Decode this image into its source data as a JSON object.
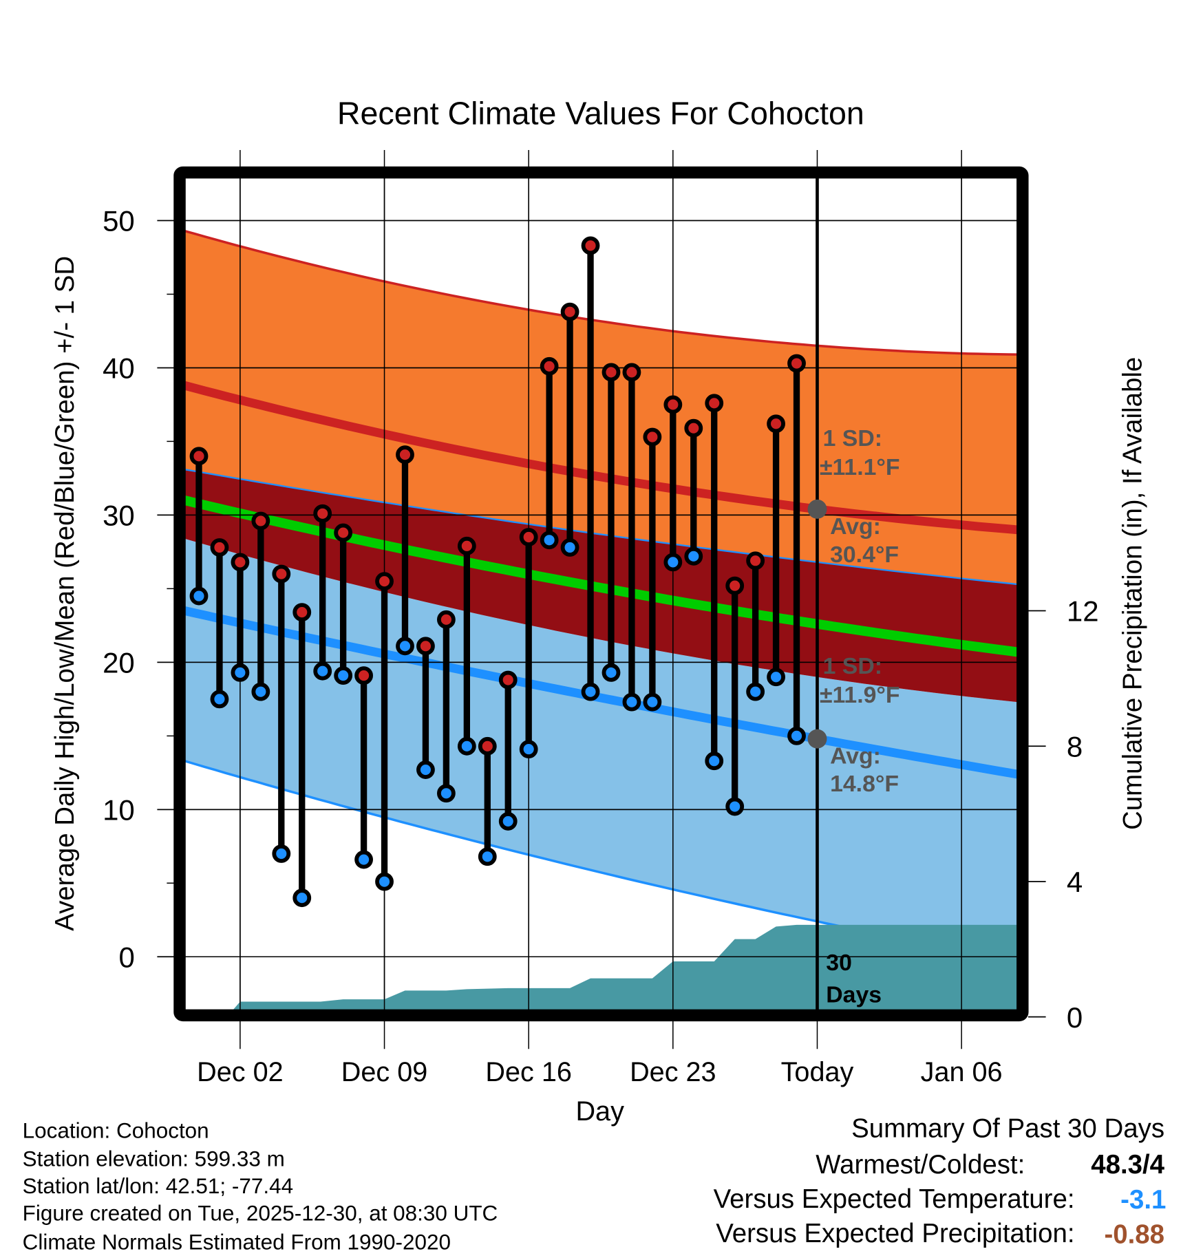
{
  "chart_data": {
    "type": "line",
    "title": "Recent Climate Values For Cohocton",
    "xlabel": "Day",
    "ylabel": "Average Daily High/Low/Mean (Red/Blue/Green) +/- 1 SD",
    "y2label": "Cumulative Precipitation (in), If Available",
    "ylim": [
      -3.6,
      52.9
    ],
    "y2lim": [
      0,
      13
    ],
    "yticks": [
      "0",
      "10",
      "20",
      "30",
      "40",
      "50"
    ],
    "y2ticks": [
      "0",
      "4",
      "8",
      "12"
    ],
    "xticks": [
      {
        "day": 2,
        "label": "Dec 02"
      },
      {
        "day": 9,
        "label": "Dec 09"
      },
      {
        "day": 16,
        "label": "Dec 16"
      },
      {
        "day": 23,
        "label": "Dec 23"
      },
      {
        "day": 30,
        "label": "Today"
      },
      {
        "day": 37,
        "label": "Jan 06"
      }
    ],
    "days": [
      "Nov 30",
      "Dec 01",
      "Dec 02",
      "Dec 03",
      "Dec 04",
      "Dec 05",
      "Dec 06",
      "Dec 07",
      "Dec 08",
      "Dec 09",
      "Dec 10",
      "Dec 11",
      "Dec 12",
      "Dec 13",
      "Dec 14",
      "Dec 15",
      "Dec 16",
      "Dec 17",
      "Dec 18",
      "Dec 19",
      "Dec 20",
      "Dec 21",
      "Dec 22",
      "Dec 23",
      "Dec 24",
      "Dec 25",
      "Dec 26",
      "Dec 27",
      "Dec 28",
      "Dec 29"
    ],
    "series": [
      {
        "name": "Daily High",
        "color": "#CC2222",
        "values": [
          34.0,
          27.8,
          26.8,
          29.6,
          26.0,
          23.4,
          30.1,
          28.8,
          19.1,
          25.5,
          34.1,
          21.1,
          22.9,
          27.9,
          14.3,
          18.8,
          28.5,
          40.1,
          43.8,
          48.3,
          39.7,
          39.7,
          35.3,
          37.5,
          35.9,
          37.6,
          25.2,
          26.9,
          36.2,
          40.3
        ]
      },
      {
        "name": "Daily Low",
        "color": "#1E90FF",
        "values": [
          24.5,
          17.5,
          19.3,
          18.0,
          7.0,
          4.0,
          19.4,
          19.1,
          6.6,
          5.1,
          21.1,
          12.7,
          11.1,
          14.3,
          6.8,
          9.2,
          14.1,
          28.3,
          27.8,
          18.0,
          19.3,
          17.3,
          17.3,
          26.8,
          27.2,
          13.3,
          10.2,
          18.0,
          19.0,
          15.0
        ]
      }
    ],
    "normals": {
      "sample_days": [
        -0.7,
        30,
        39.7
      ],
      "high_plus_sd": [
        49.3,
        41.5,
        40.9
      ],
      "high_avg": [
        38.8,
        30.4,
        29.0
      ],
      "high_minus_sd": [
        33.1,
        26.8,
        25.3
      ],
      "mean_avg": [
        31.0,
        22.6,
        20.7
      ],
      "low_plus_sd": [
        28.4,
        19.0,
        17.3
      ],
      "low_avg": [
        23.5,
        14.8,
        12.4
      ],
      "low_minus_sd": [
        13.3,
        2.4,
        -0.3
      ]
    },
    "precip_cumulative": {
      "days": [
        1.36,
        2,
        5.9,
        7,
        9,
        10,
        12,
        13,
        15,
        18,
        19,
        22,
        23,
        25,
        26,
        27,
        28,
        29,
        39.7
      ],
      "inches": [
        0,
        0.45,
        0.45,
        0.52,
        0.52,
        0.78,
        0.78,
        0.82,
        0.85,
        0.85,
        1.14,
        1.14,
        1.64,
        1.64,
        2.3,
        2.3,
        2.67,
        2.72,
        2.72
      ]
    },
    "annotations": {
      "high_sd_label": "1 SD:",
      "high_sd_value": "±11.1°F",
      "high_avg_label": "Avg:",
      "high_avg_value": "30.4°F",
      "low_sd_label": "1 SD:",
      "low_sd_value": "±11.9°F",
      "low_avg_label": "Avg:",
      "low_avg_value": "14.8°F",
      "window_num": "30",
      "window_unit": "Days"
    },
    "colors": {
      "high_band": "#F57A2E",
      "overlap_band": "#930E14",
      "low_band": "#85C1E8",
      "high_line": "#CC2222",
      "low_line": "#1E90FF",
      "mean_line": "#00CC00",
      "precip": "#4899A3"
    }
  },
  "footer": {
    "location": "Location: Cohocton",
    "elevation": "Station elevation: 599.33 m",
    "latlon": "Station lat/lon: 42.51; -77.44",
    "created": "Figure created on Tue, 2025-12-30, at 08:30 UTC",
    "normals": "Climate Normals Estimated From 1990-2020"
  },
  "summary": {
    "title": "Summary Of Past 30 Days",
    "warmest_label": "Warmest/Coldest:",
    "warmest_value": "48.3/4",
    "temp_label": "Versus Expected Temperature:",
    "temp_value": "-3.1",
    "temp_color": "#1E90FF",
    "precip_label": "Versus Expected Precipitation:",
    "precip_value": "-0.88",
    "precip_color": "#A0522D"
  }
}
